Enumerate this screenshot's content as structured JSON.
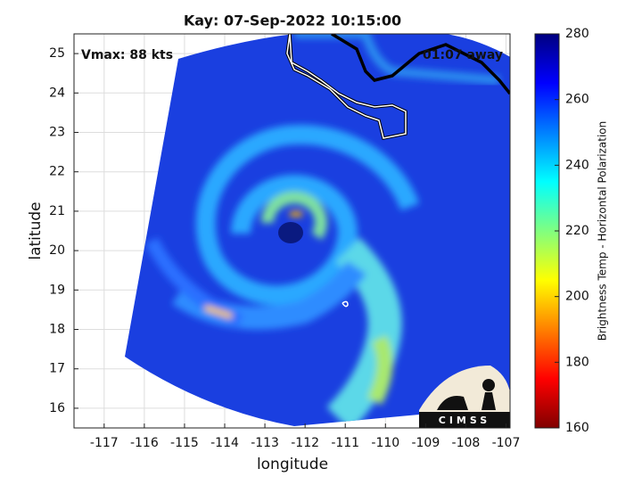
{
  "title": "Kay: 07-Sep-2022 10:15:00",
  "annotations": {
    "vmax": "Vmax: 88 kts",
    "away": "01:07 away"
  },
  "x_axis": {
    "label": "longitude",
    "lim": [
      -117.75,
      -106.9
    ],
    "ticks": [
      -117,
      -116,
      -115,
      -114,
      -113,
      -112,
      -111,
      -110,
      -109,
      -108,
      -107
    ]
  },
  "y_axis": {
    "label": "latitude",
    "lim": [
      15.5,
      25.5
    ],
    "ticks": [
      16,
      17,
      18,
      19,
      20,
      21,
      22,
      23,
      24,
      25
    ]
  },
  "grid": true,
  "colorbar": {
    "label": "Brightness Temp - Horizontal Polarization",
    "lim": [
      160,
      280
    ],
    "ticks": [
      160,
      180,
      200,
      220,
      240,
      260,
      280
    ],
    "colors": [
      "#800000",
      "#ff0000",
      "#ff8000",
      "#ffff00",
      "#80ff80",
      "#00ffff",
      "#0080ff",
      "#0000ff",
      "#000080"
    ]
  },
  "logo": "CIMSS"
}
